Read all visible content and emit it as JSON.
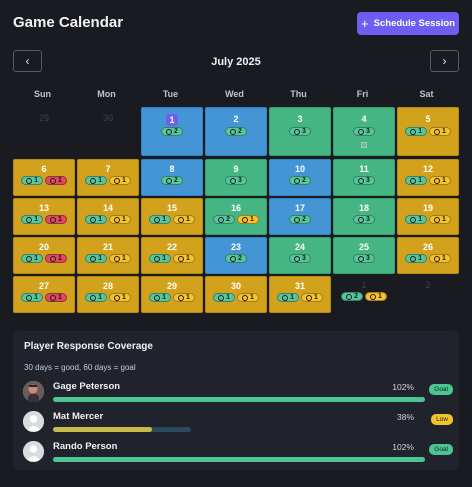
{
  "header": {
    "title": "Game Calendar",
    "schedule_button": "Schedule Session",
    "prev_label": "‹",
    "next_label": "›"
  },
  "calendar": {
    "month_label": "July 2025",
    "weekdays": [
      "Sun",
      "Mon",
      "Tue",
      "Wed",
      "Thu",
      "Fri",
      "Sat"
    ],
    "days": [
      {
        "day": "29",
        "status": "empty",
        "badges": []
      },
      {
        "day": "30",
        "status": "empty",
        "badges": []
      },
      {
        "day": "1",
        "status": "blue",
        "today": true,
        "badges": [
          {
            "type": "ok",
            "count": "2"
          }
        ]
      },
      {
        "day": "2",
        "status": "blue",
        "badges": [
          {
            "type": "ok",
            "count": "2"
          }
        ]
      },
      {
        "day": "3",
        "status": "green",
        "badges": [
          {
            "type": "ok",
            "count": "3"
          }
        ]
      },
      {
        "day": "4",
        "status": "green",
        "badges": [
          {
            "type": "ok",
            "count": "3"
          }
        ],
        "dice": true
      },
      {
        "day": "5",
        "status": "gold",
        "badges": [
          {
            "type": "ok",
            "count": "1"
          },
          {
            "type": "maybe",
            "count": "1"
          }
        ]
      },
      {
        "day": "6",
        "status": "gold",
        "badges": [
          {
            "type": "ok",
            "count": "1"
          },
          {
            "type": "no",
            "count": "1"
          }
        ]
      },
      {
        "day": "7",
        "status": "gold",
        "badges": [
          {
            "type": "ok",
            "count": "1"
          },
          {
            "type": "maybe",
            "count": "1"
          }
        ]
      },
      {
        "day": "8",
        "status": "blue",
        "badges": [
          {
            "type": "ok",
            "count": "2"
          }
        ]
      },
      {
        "day": "9",
        "status": "green",
        "badges": [
          {
            "type": "ok",
            "count": "3"
          }
        ]
      },
      {
        "day": "10",
        "status": "blue",
        "badges": [
          {
            "type": "ok",
            "count": "2"
          }
        ]
      },
      {
        "day": "11",
        "status": "green",
        "badges": [
          {
            "type": "ok",
            "count": "3"
          }
        ]
      },
      {
        "day": "12",
        "status": "gold",
        "badges": [
          {
            "type": "ok",
            "count": "1"
          },
          {
            "type": "maybe",
            "count": "1"
          }
        ]
      },
      {
        "day": "13",
        "status": "gold",
        "badges": [
          {
            "type": "ok",
            "count": "1"
          },
          {
            "type": "no",
            "count": "1"
          }
        ]
      },
      {
        "day": "14",
        "status": "gold",
        "badges": [
          {
            "type": "ok",
            "count": "1"
          },
          {
            "type": "maybe",
            "count": "1"
          }
        ]
      },
      {
        "day": "15",
        "status": "gold",
        "badges": [
          {
            "type": "ok",
            "count": "1"
          },
          {
            "type": "maybe",
            "count": "1"
          }
        ]
      },
      {
        "day": "16",
        "status": "green",
        "badges": [
          {
            "type": "ok",
            "count": "2"
          },
          {
            "type": "maybe",
            "count": "1"
          }
        ]
      },
      {
        "day": "17",
        "status": "blue",
        "badges": [
          {
            "type": "ok",
            "count": "2"
          }
        ]
      },
      {
        "day": "18",
        "status": "green",
        "badges": [
          {
            "type": "ok",
            "count": "3"
          }
        ]
      },
      {
        "day": "19",
        "status": "gold",
        "badges": [
          {
            "type": "ok",
            "count": "1"
          },
          {
            "type": "maybe",
            "count": "1"
          }
        ]
      },
      {
        "day": "20",
        "status": "gold",
        "badges": [
          {
            "type": "ok",
            "count": "1"
          },
          {
            "type": "no",
            "count": "1"
          }
        ]
      },
      {
        "day": "21",
        "status": "gold",
        "badges": [
          {
            "type": "ok",
            "count": "1"
          },
          {
            "type": "maybe",
            "count": "1"
          }
        ]
      },
      {
        "day": "22",
        "status": "gold",
        "badges": [
          {
            "type": "ok",
            "count": "1"
          },
          {
            "type": "maybe",
            "count": "1"
          }
        ]
      },
      {
        "day": "23",
        "status": "blue",
        "badges": [
          {
            "type": "ok",
            "count": "2"
          }
        ]
      },
      {
        "day": "24",
        "status": "green",
        "badges": [
          {
            "type": "ok",
            "count": "3"
          }
        ]
      },
      {
        "day": "25",
        "status": "green",
        "badges": [
          {
            "type": "ok",
            "count": "3"
          }
        ]
      },
      {
        "day": "26",
        "status": "gold",
        "badges": [
          {
            "type": "ok",
            "count": "1"
          },
          {
            "type": "maybe",
            "count": "1"
          }
        ]
      },
      {
        "day": "27",
        "status": "gold",
        "badges": [
          {
            "type": "ok",
            "count": "1"
          },
          {
            "type": "no",
            "count": "1"
          }
        ]
      },
      {
        "day": "28",
        "status": "gold",
        "badges": [
          {
            "type": "ok",
            "count": "1"
          },
          {
            "type": "maybe",
            "count": "1"
          }
        ]
      },
      {
        "day": "29",
        "status": "gold",
        "badges": [
          {
            "type": "ok",
            "count": "1"
          },
          {
            "type": "maybe",
            "count": "1"
          }
        ]
      },
      {
        "day": "30",
        "status": "gold",
        "badges": [
          {
            "type": "ok",
            "count": "1"
          },
          {
            "type": "maybe",
            "count": "1"
          }
        ]
      },
      {
        "day": "31",
        "status": "gold",
        "badges": [
          {
            "type": "ok",
            "count": "1"
          },
          {
            "type": "maybe",
            "count": "1"
          }
        ]
      },
      {
        "day": "1",
        "status": "empty",
        "badges": [
          {
            "type": "ok",
            "count": "2"
          },
          {
            "type": "maybe",
            "count": "1"
          }
        ]
      },
      {
        "day": "2",
        "status": "empty",
        "badges": []
      }
    ]
  },
  "coverage": {
    "title": "Player Response Coverage",
    "subtitle": "30 days = good, 60 days = goal",
    "players": [
      {
        "name": "Gage Peterson",
        "percent": "102%",
        "fraction": 1.0,
        "badge": "Goal",
        "badge_color": "#4cc592",
        "bar_color": "#4cc592",
        "avatar": "photo"
      },
      {
        "name": "Mat Mercer",
        "percent": "38%",
        "fraction": 0.38,
        "badge": "Low",
        "badge_color": "#f4c22c",
        "bar_color": "#c9b84a",
        "avatar": "default"
      },
      {
        "name": "Rando Person",
        "percent": "102%",
        "fraction": 1.0,
        "badge": "Goal",
        "badge_color": "#4cc592",
        "bar_color": "#4cc592",
        "avatar": "default"
      }
    ]
  },
  "colors": {
    "accent": "#6d5df3",
    "gold": "#d3a21c",
    "blue": "#4495d6",
    "green": "#44b583",
    "no": "#e04860"
  }
}
